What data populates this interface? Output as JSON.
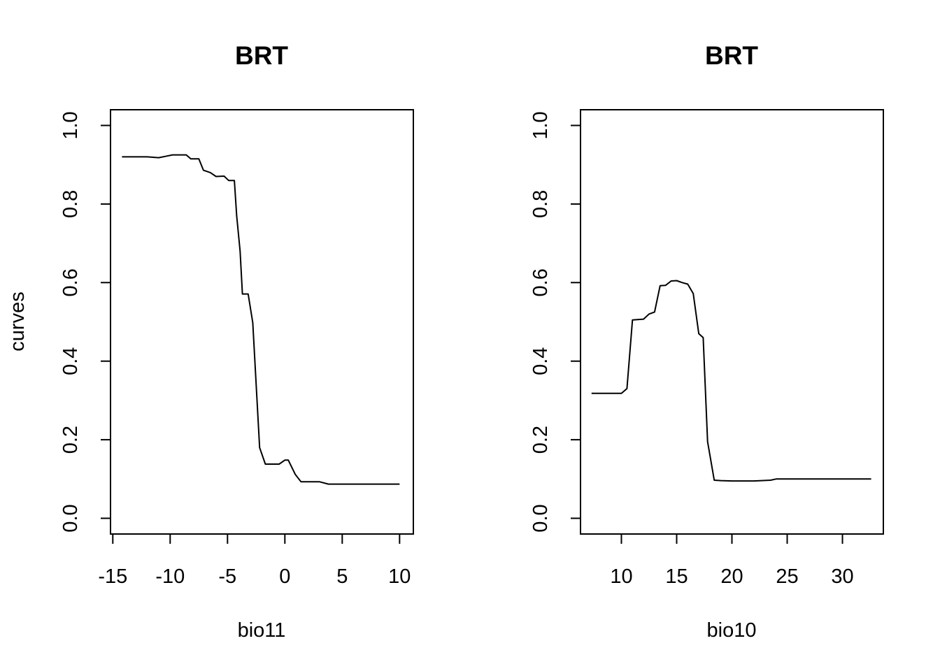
{
  "ylabel": "curves",
  "chart_data": [
    {
      "type": "line",
      "title": "BRT",
      "xlabel": "bio11",
      "xlim": [
        -15.2,
        11.2
      ],
      "ylim": [
        -0.04,
        1.04
      ],
      "xticks": [
        -15,
        -10,
        -5,
        0,
        5,
        10
      ],
      "xtick_labels": [
        "-15",
        "-10",
        "-5",
        "0",
        "5",
        "10"
      ],
      "yticks": [
        0.0,
        0.2,
        0.4,
        0.6,
        0.8,
        1.0
      ],
      "ytick_labels": [
        "0.0",
        "0.2",
        "0.4",
        "0.6",
        "0.8",
        "1.0"
      ],
      "series": [
        {
          "x": [
            -14.2,
            -13.0,
            -12.0,
            -11.0,
            -10.3,
            -9.8,
            -8.6,
            -8.2,
            -7.5,
            -7.1,
            -6.5,
            -6.0,
            -5.3,
            -4.9,
            -4.4,
            -4.2,
            -3.9,
            -3.7,
            -3.2,
            -2.8,
            -2.2,
            -1.7,
            -1.2,
            -0.5,
            0.0,
            0.3,
            0.9,
            1.4,
            1.8,
            2.5,
            3.0,
            3.8,
            4.2,
            5.0,
            10.0
          ],
          "y": [
            0.92,
            0.92,
            0.92,
            0.918,
            0.922,
            0.925,
            0.925,
            0.915,
            0.915,
            0.886,
            0.88,
            0.87,
            0.871,
            0.86,
            0.86,
            0.77,
            0.68,
            0.571,
            0.571,
            0.498,
            0.18,
            0.138,
            0.138,
            0.138,
            0.148,
            0.148,
            0.112,
            0.093,
            0.093,
            0.093,
            0.093,
            0.087,
            0.087,
            0.087,
            0.087
          ]
        }
      ]
    },
    {
      "type": "line",
      "title": "BRT",
      "xlabel": "bio10",
      "xlim": [
        6.3,
        33.7
      ],
      "ylim": [
        -0.04,
        1.04
      ],
      "xticks": [
        10,
        15,
        20,
        25,
        30
      ],
      "xtick_labels": [
        "10",
        "15",
        "20",
        "25",
        "30"
      ],
      "yticks": [
        0.0,
        0.2,
        0.4,
        0.6,
        0.8,
        1.0
      ],
      "ytick_labels": [
        "0.0",
        "0.2",
        "0.4",
        "0.6",
        "0.8",
        "1.0"
      ],
      "series": [
        {
          "x": [
            7.3,
            10.0,
            10.5,
            11.0,
            12.0,
            12.5,
            13.0,
            13.5,
            14.0,
            14.5,
            15.0,
            15.5,
            16.0,
            16.5,
            17.0,
            17.4,
            17.8,
            18.4,
            19.0,
            20.0,
            22.0,
            23.5,
            24.0,
            26.0,
            32.6
          ],
          "y": [
            0.318,
            0.318,
            0.33,
            0.505,
            0.507,
            0.52,
            0.525,
            0.592,
            0.593,
            0.604,
            0.605,
            0.6,
            0.596,
            0.572,
            0.47,
            0.46,
            0.195,
            0.097,
            0.096,
            0.095,
            0.095,
            0.097,
            0.1,
            0.1,
            0.1
          ]
        }
      ]
    }
  ]
}
